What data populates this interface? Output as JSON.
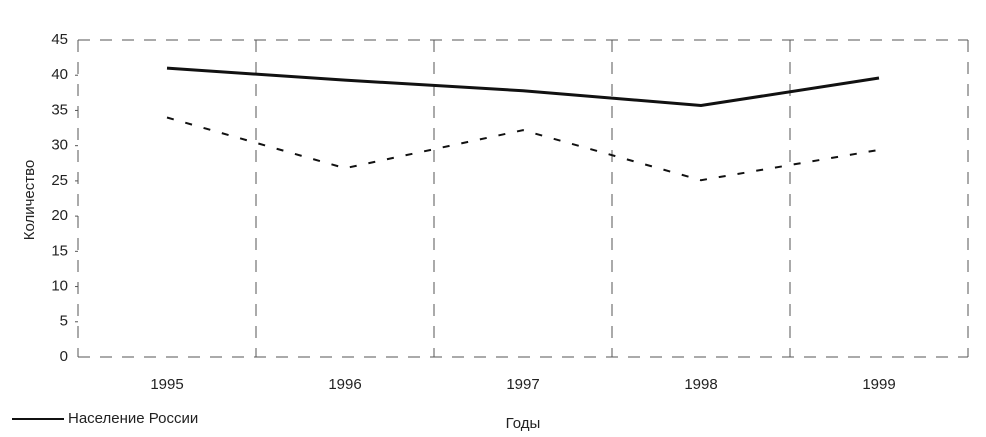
{
  "chart_data": {
    "type": "line",
    "y_label": "Количество",
    "x_label": "Годы",
    "categories": [
      "1995",
      "1996",
      "1997",
      "1998",
      "1999"
    ],
    "series": [
      {
        "name": "Население России",
        "color": "#111111",
        "dash": "solid",
        "values": [
          41,
          39.3,
          37.8,
          35.7,
          39.6
        ]
      },
      {
        "color": "#111111",
        "dash": "dashed",
        "values": [
          34,
          26.8,
          32.2,
          25.1,
          29.4
        ]
      }
    ],
    "ylim": [
      0,
      45
    ],
    "yticks": [
      0,
      5,
      10,
      15,
      20,
      25,
      30,
      35,
      40,
      45
    ],
    "grid": true,
    "legend": "bottom-left"
  }
}
